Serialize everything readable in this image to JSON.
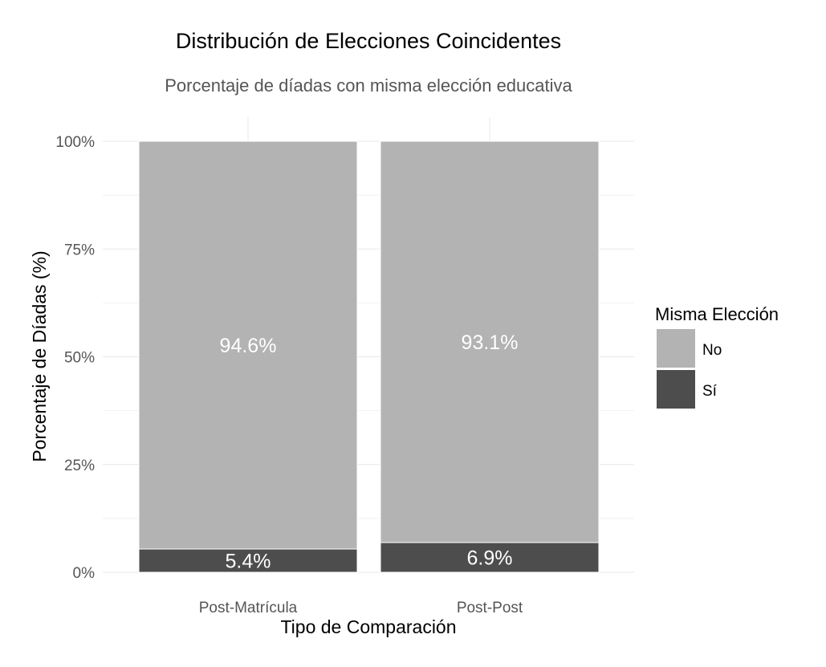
{
  "chart_data": {
    "type": "bar",
    "stacked": true,
    "title": "Distribución de Elecciones Coincidentes",
    "subtitle": "Porcentaje de díadas con misma elección educativa",
    "xlabel": "Tipo de Comparación",
    "ylabel": "Porcentaje de Díadas (%)",
    "categories": [
      "Post-Matrícula",
      "Post-Post"
    ],
    "ylim": [
      0,
      100
    ],
    "yticks": [
      0,
      25,
      50,
      75,
      100
    ],
    "ytick_labels": [
      "0%",
      "25%",
      "50%",
      "75%",
      "100%"
    ],
    "grid": true,
    "series": [
      {
        "name": "Sí",
        "values": [
          5.4,
          6.9
        ],
        "labels": [
          "5.4%",
          "6.9%"
        ],
        "color": "#4d4d4d"
      },
      {
        "name": "No",
        "values": [
          94.6,
          93.1
        ],
        "labels": [
          "94.6%",
          "93.1%"
        ],
        "color": "#b3b3b3"
      }
    ],
    "legend": {
      "title": "Misma Elección",
      "position": "right",
      "entries": [
        {
          "label": "No",
          "color": "#b3b3b3"
        },
        {
          "label": "Sí",
          "color": "#4d4d4d"
        }
      ]
    }
  }
}
